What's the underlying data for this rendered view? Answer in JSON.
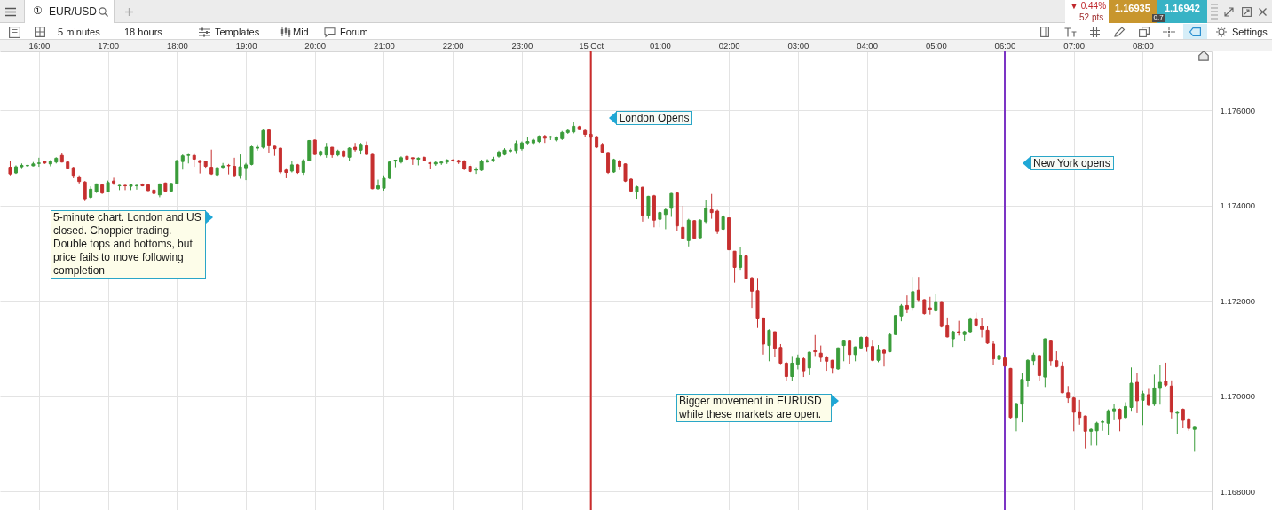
{
  "chart_data": {
    "type": "candlestick",
    "title": "EUR/USD",
    "x": [
      "--10-14T15:35",
      "--10-14T15:40",
      "--10-14T15:45",
      "--10-14T15:50",
      "--10-14T15:55",
      "--10-14T16:00",
      "--10-14T16:05",
      "--10-14T16:10",
      "--10-14T16:15",
      "--10-14T16:20",
      "--10-14T16:25",
      "--10-14T16:30",
      "--10-14T16:35",
      "--10-14T16:40",
      "--10-14T16:45",
      "--10-14T16:50",
      "--10-14T16:55",
      "--10-14T17:00",
      "--10-14T17:05",
      "--10-14T17:10",
      "--10-14T17:15",
      "--10-14T17:20",
      "--10-14T17:25",
      "--10-14T17:30",
      "--10-14T17:35",
      "--10-14T17:40",
      "--10-14T17:45",
      "--10-14T17:50",
      "--10-14T17:55",
      "--10-14T18:00",
      "--10-14T18:05",
      "--10-14T18:10",
      "--10-14T18:15",
      "--10-14T18:20",
      "--10-14T18:25",
      "--10-14T18:30",
      "--10-14T18:35",
      "--10-14T18:40",
      "--10-14T18:45",
      "--10-14T18:50",
      "--10-14T18:55",
      "--10-14T19:00",
      "--10-14T19:05",
      "--10-14T19:10",
      "--10-14T19:15",
      "--10-14T19:20",
      "--10-14T19:25",
      "--10-14T19:30",
      "--10-14T19:35",
      "--10-14T19:40",
      "--10-14T19:45",
      "--10-14T19:50",
      "--10-14T19:55",
      "--10-14T20:00",
      "--10-14T20:05",
      "--10-14T20:10",
      "--10-14T20:15",
      "--10-14T20:20",
      "--10-14T20:25",
      "--10-14T20:30",
      "--10-14T20:35",
      "--10-14T20:40",
      "--10-14T20:45",
      "--10-14T20:50",
      "--10-14T20:55",
      "--10-14T21:00",
      "--10-14T21:05",
      "--10-14T21:10",
      "--10-14T21:15",
      "--10-14T21:20",
      "--10-14T21:25",
      "--10-14T21:30",
      "--10-14T21:35",
      "--10-14T21:40",
      "--10-14T21:45",
      "--10-14T21:50",
      "--10-14T21:55",
      "--10-14T22:00",
      "--10-14T22:05",
      "--10-14T22:10",
      "--10-14T22:15",
      "--10-14T22:20",
      "--10-14T22:25",
      "--10-14T22:30",
      "--10-14T22:35",
      "--10-14T22:40",
      "--10-14T22:45",
      "--10-14T22:50",
      "--10-14T22:55",
      "--10-14T23:00",
      "--10-14T23:05",
      "--10-14T23:10",
      "--10-14T23:15",
      "--10-14T23:20",
      "--10-14T23:25",
      "--10-14T23:30",
      "--10-14T23:35",
      "--10-14T23:40",
      "--10-14T23:45",
      "--10-14T23:50",
      "--10-14T23:55",
      "--10-15T00:00",
      "--10-15T00:05",
      "--10-15T00:10",
      "--10-15T00:15",
      "--10-15T00:20",
      "--10-15T00:25",
      "--10-15T00:30",
      "--10-15T00:35",
      "--10-15T00:40",
      "--10-15T00:45",
      "--10-15T00:50",
      "--10-15T00:55",
      "--10-15T01:00",
      "--10-15T01:05",
      "--10-15T01:10",
      "--10-15T01:15",
      "--10-15T01:20",
      "--10-15T01:25",
      "--10-15T01:30",
      "--10-15T01:35",
      "--10-15T01:40",
      "--10-15T01:45",
      "--10-15T01:50",
      "--10-15T01:55",
      "--10-15T02:00",
      "--10-15T02:05",
      "--10-15T02:10",
      "--10-15T02:15",
      "--10-15T02:20",
      "--10-15T02:25",
      "--10-15T02:30",
      "--10-15T02:35",
      "--10-15T02:40",
      "--10-15T02:45",
      "--10-15T02:50",
      "--10-15T02:55",
      "--10-15T03:00",
      "--10-15T03:05",
      "--10-15T03:10",
      "--10-15T03:15",
      "--10-15T03:20",
      "--10-15T03:25",
      "--10-15T03:30",
      "--10-15T03:35",
      "--10-15T03:40",
      "--10-15T03:45",
      "--10-15T03:50",
      "--10-15T03:55",
      "--10-15T04:00",
      "--10-15T04:05",
      "--10-15T04:10",
      "--10-15T04:15",
      "--10-15T04:20",
      "--10-15T04:25",
      "--10-15T04:30",
      "--10-15T04:35",
      "--10-15T04:40",
      "--10-15T04:45",
      "--10-15T04:50",
      "--10-15T04:55",
      "--10-15T05:00",
      "--10-15T05:05",
      "--10-15T05:10",
      "--10-15T05:15",
      "--10-15T05:20",
      "--10-15T05:25",
      "--10-15T05:30",
      "--10-15T05:35",
      "--10-15T05:40",
      "--10-15T05:45",
      "--10-15T05:50",
      "--10-15T05:55",
      "--10-15T06:00",
      "--10-15T06:05",
      "--10-15T06:10",
      "--10-15T06:15",
      "--10-15T06:20",
      "--10-15T06:25",
      "--10-15T06:30",
      "--10-15T06:35",
      "--10-15T06:40",
      "--10-15T06:45",
      "--10-15T06:50",
      "--10-15T06:55",
      "--10-15T07:00",
      "--10-15T07:05",
      "--10-15T07:10",
      "--10-15T07:15",
      "--10-15T07:20",
      "--10-15T07:25",
      "--10-15T07:30",
      "--10-15T07:35",
      "--10-15T07:40",
      "--10-15T07:45",
      "--10-15T07:50",
      "--10-15T07:55",
      "--10-15T08:00",
      "--10-15T08:05",
      "--10-15T08:10",
      "--10-15T08:15",
      "--10-15T08:20",
      "--10-15T08:25",
      "--10-15T08:30",
      "--10-15T08:35",
      "--10-15T08:40",
      "--10-15T08:45"
    ],
    "ohlc": [
      [
        1.1748,
        1.17494,
        1.17463,
        1.17466
      ],
      [
        1.17468,
        1.17484,
        1.17466,
        1.17481
      ],
      [
        1.17481,
        1.17488,
        1.17478,
        1.17484
      ],
      [
        1.17483,
        1.17485,
        1.17482,
        1.17484
      ],
      [
        1.17483,
        1.17491,
        1.17482,
        1.17487
      ],
      [
        1.17488,
        1.175,
        1.17481,
        1.17489
      ],
      [
        1.17493,
        1.17494,
        1.17487,
        1.17489
      ],
      [
        1.17487,
        1.17495,
        1.17482,
        1.17492
      ],
      [
        1.17491,
        1.17501,
        1.17488,
        1.17499
      ],
      [
        1.17505,
        1.17509,
        1.1749,
        1.17491
      ],
      [
        1.17491,
        1.17492,
        1.17476,
        1.17478
      ],
      [
        1.17479,
        1.17481,
        1.17457,
        1.17463
      ],
      [
        1.1746,
        1.17463,
        1.17446,
        1.1745
      ],
      [
        1.17449,
        1.17451,
        1.17409,
        1.17414
      ],
      [
        1.17417,
        1.1744,
        1.17414,
        1.17434
      ],
      [
        1.17429,
        1.17446,
        1.17426,
        1.17445
      ],
      [
        1.17443,
        1.17445,
        1.17424,
        1.17426
      ],
      [
        1.17429,
        1.17452,
        1.17429,
        1.17448
      ],
      [
        1.17451,
        1.17458,
        1.17443,
        1.17447
      ],
      [
        1.17441,
        1.17443,
        1.17432,
        1.17442
      ],
      [
        1.17442,
        1.17443,
        1.17432,
        1.17441
      ],
      [
        1.1744,
        1.17445,
        1.17432,
        1.17443
      ],
      [
        1.17441,
        1.17443,
        1.17433,
        1.17442
      ],
      [
        1.17444,
        1.17446,
        1.1744,
        1.17441
      ],
      [
        1.17443,
        1.17445,
        1.1743,
        1.17431
      ],
      [
        1.17432,
        1.17434,
        1.17423,
        1.17425
      ],
      [
        1.17422,
        1.17446,
        1.17417,
        1.17445
      ],
      [
        1.17447,
        1.17448,
        1.17429,
        1.1743
      ],
      [
        1.1743,
        1.17447,
        1.17429,
        1.17446
      ],
      [
        1.17446,
        1.17495,
        1.17445,
        1.17494
      ],
      [
        1.17492,
        1.17507,
        1.17475,
        1.17504
      ],
      [
        1.17505,
        1.17508,
        1.17488,
        1.17506
      ],
      [
        1.17505,
        1.17508,
        1.17481,
        1.17497
      ],
      [
        1.17494,
        1.17495,
        1.17467,
        1.1749
      ],
      [
        1.17493,
        1.17494,
        1.17479,
        1.17482
      ],
      [
        1.1748,
        1.17517,
        1.17464,
        1.17466
      ],
      [
        1.17464,
        1.17481,
        1.17461,
        1.17479
      ],
      [
        1.1748,
        1.17489,
        1.17478,
        1.17483
      ],
      [
        1.17484,
        1.17487,
        1.17465,
        1.17483
      ],
      [
        1.17482,
        1.175,
        1.17459,
        1.17463
      ],
      [
        1.17463,
        1.17507,
        1.17456,
        1.17481
      ],
      [
        1.17479,
        1.17489,
        1.17453,
        1.17485
      ],
      [
        1.17486,
        1.17525,
        1.17484,
        1.17523
      ],
      [
        1.1752,
        1.17528,
        1.17515,
        1.17522
      ],
      [
        1.17522,
        1.17559,
        1.17519,
        1.17557
      ],
      [
        1.17558,
        1.1756,
        1.1751,
        1.17525
      ],
      [
        1.17524,
        1.17525,
        1.17504,
        1.17519
      ],
      [
        1.1752,
        1.17521,
        1.17466,
        1.1747
      ],
      [
        1.17474,
        1.17478,
        1.17457,
        1.17469
      ],
      [
        1.17472,
        1.17494,
        1.17469,
        1.17485
      ],
      [
        1.17485,
        1.17487,
        1.17466,
        1.17469
      ],
      [
        1.17469,
        1.17497,
        1.17464,
        1.17494
      ],
      [
        1.17494,
        1.17537,
        1.17493,
        1.17536
      ],
      [
        1.17537,
        1.17538,
        1.17506,
        1.17507
      ],
      [
        1.17506,
        1.17515,
        1.17503,
        1.17513
      ],
      [
        1.17506,
        1.17531,
        1.175,
        1.17522
      ],
      [
        1.17522,
        1.17522,
        1.175,
        1.17506
      ],
      [
        1.17506,
        1.17517,
        1.17503,
        1.17514
      ],
      [
        1.17514,
        1.17516,
        1.175,
        1.17503
      ],
      [
        1.17501,
        1.17522,
        1.17494,
        1.1752
      ],
      [
        1.17522,
        1.17531,
        1.17513,
        1.17517
      ],
      [
        1.17516,
        1.17531,
        1.17507,
        1.17528
      ],
      [
        1.17525,
        1.17534,
        1.17506,
        1.17507
      ],
      [
        1.17507,
        1.17508,
        1.17434,
        1.17435
      ],
      [
        1.17435,
        1.17454,
        1.17433,
        1.17441
      ],
      [
        1.17436,
        1.17463,
        1.17431,
        1.17457
      ],
      [
        1.17457,
        1.17493,
        1.17455,
        1.17491
      ],
      [
        1.17493,
        1.17496,
        1.1748,
        1.17495
      ],
      [
        1.17491,
        1.17503,
        1.17488,
        1.175
      ],
      [
        1.17503,
        1.17505,
        1.17494,
        1.17497
      ],
      [
        1.175,
        1.175,
        1.17485,
        1.17498
      ],
      [
        1.17497,
        1.17501,
        1.17484,
        1.17499
      ],
      [
        1.17501,
        1.17502,
        1.17493,
        1.17494
      ],
      [
        1.17489,
        1.17491,
        1.17477,
        1.17488
      ],
      [
        1.17487,
        1.17494,
        1.17483,
        1.1749
      ],
      [
        1.17489,
        1.17492,
        1.17485,
        1.17491
      ],
      [
        1.17491,
        1.17497,
        1.17487,
        1.17495
      ],
      [
        1.17495,
        1.17497,
        1.17492,
        1.17494
      ],
      [
        1.17494,
        1.17496,
        1.17487,
        1.17491
      ],
      [
        1.17493,
        1.17495,
        1.17474,
        1.17477
      ],
      [
        1.17482,
        1.17486,
        1.17468,
        1.17471
      ],
      [
        1.17474,
        1.1748,
        1.17466,
        1.17476
      ],
      [
        1.17474,
        1.17496,
        1.17472,
        1.17492
      ],
      [
        1.17491,
        1.17497,
        1.1749,
        1.17494
      ],
      [
        1.17493,
        1.17502,
        1.17491,
        1.17497
      ],
      [
        1.17503,
        1.17515,
        1.175,
        1.17512
      ],
      [
        1.17507,
        1.1752,
        1.17505,
        1.17516
      ],
      [
        1.17514,
        1.1752,
        1.1751,
        1.17516
      ],
      [
        1.17515,
        1.17536,
        1.17508,
        1.1753
      ],
      [
        1.17519,
        1.17534,
        1.17515,
        1.17531
      ],
      [
        1.17531,
        1.17543,
        1.17528,
        1.17534
      ],
      [
        1.17531,
        1.1754,
        1.17528,
        1.17537
      ],
      [
        1.17534,
        1.17547,
        1.17531,
        1.17545
      ],
      [
        1.17545,
        1.17548,
        1.17531,
        1.17541
      ],
      [
        1.17543,
        1.17546,
        1.17537,
        1.17544
      ],
      [
        1.17537,
        1.17545,
        1.17534,
        1.17543
      ],
      [
        1.1754,
        1.17556,
        1.17537,
        1.17553
      ],
      [
        1.17553,
        1.1756,
        1.1755,
        1.17557
      ],
      [
        1.17554,
        1.17575,
        1.17551,
        1.17566
      ],
      [
        1.17565,
        1.17567,
        1.17558,
        1.17559
      ],
      [
        1.17557,
        1.17559,
        1.17543,
        1.17549
      ],
      [
        1.17549,
        1.17551,
        1.1754,
        1.17543
      ],
      [
        1.17544,
        1.17546,
        1.1752,
        1.17522
      ],
      [
        1.17528,
        1.17531,
        1.1751,
        1.17512
      ],
      [
        1.17511,
        1.17512,
        1.17466,
        1.17469
      ],
      [
        1.1747,
        1.17498,
        1.17468,
        1.17496
      ],
      [
        1.17493,
        1.17496,
        1.17474,
        1.17482
      ],
      [
        1.17487,
        1.17488,
        1.17449,
        1.17451
      ],
      [
        1.17455,
        1.17457,
        1.17428,
        1.1743
      ],
      [
        1.17428,
        1.17441,
        1.17414,
        1.17439
      ],
      [
        1.17438,
        1.17439,
        1.17366,
        1.17379
      ],
      [
        1.17379,
        1.1742,
        1.17372,
        1.17419
      ],
      [
        1.1742,
        1.17422,
        1.17354,
        1.17369
      ],
      [
        1.17371,
        1.17388,
        1.17354,
        1.17385
      ],
      [
        1.17381,
        1.17394,
        1.1735,
        1.17391
      ],
      [
        1.17394,
        1.17426,
        1.17376,
        1.17425
      ],
      [
        1.17426,
        1.17426,
        1.17346,
        1.17357
      ],
      [
        1.17354,
        1.17399,
        1.17329,
        1.17331
      ],
      [
        1.17326,
        1.17372,
        1.17314,
        1.17369
      ],
      [
        1.17368,
        1.17369,
        1.17329,
        1.17331
      ],
      [
        1.17332,
        1.17371,
        1.17331,
        1.17369
      ],
      [
        1.17366,
        1.17412,
        1.17363,
        1.17394
      ],
      [
        1.17391,
        1.17424,
        1.17372,
        1.17385
      ],
      [
        1.17388,
        1.17391,
        1.1734,
        1.17345
      ],
      [
        1.1735,
        1.1738,
        1.17347,
        1.17376
      ],
      [
        1.17374,
        1.17375,
        1.17306,
        1.17307
      ],
      [
        1.17304,
        1.17304,
        1.17238,
        1.1727
      ],
      [
        1.1727,
        1.17312,
        1.17265,
        1.17295
      ],
      [
        1.17294,
        1.17296,
        1.17245,
        1.17247
      ],
      [
        1.17248,
        1.1725,
        1.17185,
        1.1722
      ],
      [
        1.17221,
        1.17248,
        1.17143,
        1.17162
      ],
      [
        1.17164,
        1.17165,
        1.17087,
        1.17109
      ],
      [
        1.17106,
        1.1714,
        1.17073,
        1.17138
      ],
      [
        1.17135,
        1.17135,
        1.17081,
        1.171
      ],
      [
        1.17102,
        1.17109,
        1.17067,
        1.17069
      ],
      [
        1.17069,
        1.17072,
        1.17031,
        1.17041
      ],
      [
        1.17041,
        1.17084,
        1.17031,
        1.17069
      ],
      [
        1.17067,
        1.17087,
        1.17056,
        1.17079
      ],
      [
        1.17078,
        1.17081,
        1.1704,
        1.17053
      ],
      [
        1.17059,
        1.17093,
        1.17044,
        1.17092
      ],
      [
        1.17095,
        1.17128,
        1.17084,
        1.17093
      ],
      [
        1.1709,
        1.17106,
        1.17072,
        1.17081
      ],
      [
        1.17082,
        1.17084,
        1.17053,
        1.17073
      ],
      [
        1.17075,
        1.17076,
        1.17047,
        1.17059
      ],
      [
        1.17057,
        1.17102,
        1.17055,
        1.17101
      ],
      [
        1.17106,
        1.17118,
        1.17073,
        1.17117
      ],
      [
        1.17117,
        1.17118,
        1.17068,
        1.17087
      ],
      [
        1.17087,
        1.17104,
        1.17073,
        1.17103
      ],
      [
        1.17101,
        1.17125,
        1.17099,
        1.17123
      ],
      [
        1.17123,
        1.17125,
        1.17093,
        1.17104
      ],
      [
        1.17104,
        1.17118,
        1.17073,
        1.17075
      ],
      [
        1.17075,
        1.17107,
        1.17071,
        1.17096
      ],
      [
        1.17096,
        1.17098,
        1.17062,
        1.1709
      ],
      [
        1.17093,
        1.17131,
        1.17092,
        1.17129
      ],
      [
        1.17129,
        1.1717,
        1.17128,
        1.17169
      ],
      [
        1.17168,
        1.17193,
        1.17157,
        1.17189
      ],
      [
        1.1719,
        1.17211,
        1.17174,
        1.17183
      ],
      [
        1.17186,
        1.1725,
        1.17179,
        1.17219
      ],
      [
        1.17222,
        1.1725,
        1.17199,
        1.17202
      ],
      [
        1.17202,
        1.17203,
        1.17171,
        1.17173
      ],
      [
        1.17185,
        1.17208,
        1.17171,
        1.17182
      ],
      [
        1.17179,
        1.17214,
        1.17177,
        1.17198
      ],
      [
        1.17198,
        1.17199,
        1.17144,
        1.17146
      ],
      [
        1.17149,
        1.17165,
        1.17123,
        1.17124
      ],
      [
        1.1712,
        1.17137,
        1.17103,
        1.17135
      ],
      [
        1.17135,
        1.17158,
        1.17127,
        1.17133
      ],
      [
        1.17129,
        1.17137,
        1.17115,
        1.17135
      ],
      [
        1.17135,
        1.17165,
        1.17133,
        1.17161
      ],
      [
        1.17161,
        1.17175,
        1.17144,
        1.17149
      ],
      [
        1.17146,
        1.17163,
        1.17123,
        1.1714
      ],
      [
        1.17138,
        1.17146,
        1.17109,
        1.17111
      ],
      [
        1.17109,
        1.17115,
        1.17065,
        1.17078
      ],
      [
        1.17077,
        1.17097,
        1.17074,
        1.17085
      ],
      [
        1.1708,
        1.17082,
        1.17062,
        1.17063
      ],
      [
        1.17058,
        1.17059,
        1.16953,
        1.16955
      ],
      [
        1.16955,
        1.16986,
        1.16926,
        1.16984
      ],
      [
        1.16983,
        1.17049,
        1.16945,
        1.17035
      ],
      [
        1.17032,
        1.17077,
        1.1702,
        1.17075
      ],
      [
        1.17074,
        1.17091,
        1.17064,
        1.17086
      ],
      [
        1.17085,
        1.17086,
        1.17032,
        1.17043
      ],
      [
        1.1704,
        1.17121,
        1.17019,
        1.1712
      ],
      [
        1.17117,
        1.17118,
        1.17063,
        1.17074
      ],
      [
        1.17074,
        1.17094,
        1.1706,
        1.17062
      ],
      [
        1.17062,
        1.17072,
        1.17006,
        1.17007
      ],
      [
        1.17007,
        1.17021,
        1.16986,
        1.16996
      ],
      [
        1.16996,
        1.16998,
        1.16926,
        1.16966
      ],
      [
        1.16967,
        1.16992,
        1.1694,
        1.16955
      ],
      [
        1.16958,
        1.16959,
        1.1689,
        1.16926
      ],
      [
        1.16926,
        1.16932,
        1.16896,
        1.1693
      ],
      [
        1.16927,
        1.16946,
        1.16896,
        1.16943
      ],
      [
        1.16945,
        1.16949,
        1.16927,
        1.16946
      ],
      [
        1.16943,
        1.16972,
        1.16918,
        1.16969
      ],
      [
        1.16969,
        1.16983,
        1.16951,
        1.16973
      ],
      [
        1.16972,
        1.16974,
        1.16926,
        1.16953
      ],
      [
        1.16955,
        1.16987,
        1.16953,
        1.16978
      ],
      [
        1.16976,
        1.1706,
        1.16969,
        1.17027
      ],
      [
        1.17029,
        1.17049,
        1.16964,
        1.1699
      ],
      [
        1.16991,
        1.17011,
        1.16939,
        1.17005
      ],
      [
        1.17003,
        1.17015,
        1.16979,
        1.16981
      ],
      [
        1.16983,
        1.17045,
        1.16979,
        1.17017
      ],
      [
        1.17016,
        1.17066,
        1.16982,
        1.17029
      ],
      [
        1.17031,
        1.1707,
        1.1702,
        1.17023
      ],
      [
        1.17021,
        1.17033,
        1.16953,
        1.16966
      ],
      [
        1.16964,
        1.16969,
        1.16921,
        1.16967
      ],
      [
        1.16972,
        1.16974,
        1.16933,
        1.16949
      ],
      [
        1.16952,
        1.16954,
        1.16927,
        1.16932
      ],
      [
        1.1693,
        1.16937,
        1.16883,
        1.16936
      ]
    ],
    "colors": [
      "#c62f2f",
      "#3a9c3a",
      "#3a9c3a",
      "#3a9c3a",
      "#3a9c3a",
      "#3a9c3a",
      "#c62f2f",
      "#3a9c3a",
      "#3a9c3a",
      "#c62f2f",
      "#c62f2f",
      "#c62f2f",
      "#c62f2f",
      "#c62f2f",
      "#3a9c3a",
      "#3a9c3a",
      "#c62f2f",
      "#3a9c3a",
      "#c62f2f",
      "#3a9c3a",
      "#c62f2f",
      "#3a9c3a",
      "#3a9c3a",
      "#c62f2f",
      "#c62f2f",
      "#c62f2f",
      "#3a9c3a",
      "#c62f2f",
      "#3a9c3a",
      "#3a9c3a",
      "#3a9c3a",
      "#3a9c3a",
      "#c62f2f",
      "#c62f2f",
      "#c62f2f",
      "#c62f2f",
      "#3a9c3a",
      "#3a9c3a",
      "#c62f2f",
      "#c62f2f",
      "#3a9c3a",
      "#3a9c3a",
      "#3a9c3a",
      "#3a9c3a",
      "#3a9c3a",
      "#c62f2f",
      "#c62f2f",
      "#c62f2f",
      "#c62f2f",
      "#3a9c3a",
      "#c62f2f",
      "#3a9c3a",
      "#3a9c3a",
      "#c62f2f",
      "#3a9c3a",
      "#3a9c3a",
      "#c62f2f",
      "#3a9c3a",
      "#c62f2f",
      "#3a9c3a",
      "#c62f2f",
      "#3a9c3a",
      "#c62f2f",
      "#c62f2f",
      "#3a9c3a",
      "#3a9c3a",
      "#3a9c3a",
      "#3a9c3a",
      "#3a9c3a",
      "#c62f2f",
      "#c62f2f",
      "#3a9c3a",
      "#c62f2f",
      "#c62f2f",
      "#3a9c3a",
      "#3a9c3a",
      "#3a9c3a",
      "#c62f2f",
      "#c62f2f",
      "#c62f2f",
      "#c62f2f",
      "#3a9c3a",
      "#3a9c3a",
      "#3a9c3a",
      "#3a9c3a",
      "#3a9c3a",
      "#3a9c3a",
      "#3a9c3a",
      "#3a9c3a",
      "#3a9c3a",
      "#3a9c3a",
      "#3a9c3a",
      "#3a9c3a",
      "#c62f2f",
      "#3a9c3a",
      "#3a9c3a",
      "#3a9c3a",
      "#3a9c3a",
      "#3a9c3a",
      "#c62f2f",
      "#c62f2f",
      "#c62f2f",
      "#c62f2f",
      "#c62f2f",
      "#c62f2f",
      "#3a9c3a",
      "#c62f2f",
      "#c62f2f",
      "#c62f2f",
      "#3a9c3a",
      "#c62f2f",
      "#3a9c3a",
      "#c62f2f",
      "#3a9c3a",
      "#3a9c3a",
      "#3a9c3a",
      "#c62f2f",
      "#c62f2f",
      "#3a9c3a",
      "#c62f2f",
      "#3a9c3a",
      "#3a9c3a",
      "#c62f2f",
      "#c62f2f",
      "#3a9c3a",
      "#c62f2f",
      "#c62f2f",
      "#3a9c3a",
      "#c62f2f",
      "#c62f2f",
      "#c62f2f",
      "#c62f2f",
      "#3a9c3a",
      "#c62f2f",
      "#c62f2f",
      "#c62f2f",
      "#3a9c3a",
      "#3a9c3a",
      "#c62f2f",
      "#3a9c3a",
      "#c62f2f",
      "#c62f2f",
      "#c62f2f",
      "#c62f2f",
      "#3a9c3a",
      "#3a9c3a",
      "#c62f2f",
      "#3a9c3a",
      "#3a9c3a",
      "#c62f2f",
      "#c62f2f",
      "#3a9c3a",
      "#c62f2f",
      "#3a9c3a",
      "#3a9c3a",
      "#3a9c3a",
      "#c62f2f",
      "#3a9c3a",
      "#c62f2f",
      "#c62f2f",
      "#c62f2f",
      "#3a9c3a",
      "#c62f2f",
      "#c62f2f",
      "#3a9c3a",
      "#c62f2f",
      "#3a9c3a",
      "#3a9c3a",
      "#c62f2f",
      "#c62f2f",
      "#c62f2f",
      "#c62f2f",
      "#3a9c3a",
      "#c62f2f",
      "#c62f2f",
      "#3a9c3a",
      "#3a9c3a",
      "#3a9c3a",
      "#3a9c3a",
      "#c62f2f",
      "#3a9c3a",
      "#c62f2f",
      "#c62f2f",
      "#c62f2f",
      "#c62f2f",
      "#c62f2f",
      "#c62f2f",
      "#c62f2f",
      "#3a9c3a",
      "#3a9c3a",
      "#3a9c3a",
      "#3a9c3a",
      "#3a9c3a",
      "#c62f2f",
      "#3a9c3a",
      "#3a9c3a",
      "#c62f2f",
      "#3a9c3a",
      "#c62f2f",
      "#3a9c3a",
      "#3a9c3a",
      "#c62f2f",
      "#c62f2f",
      "#3a9c3a",
      "#c62f2f",
      "#c62f2f",
      "#3a9c3a"
    ],
    "xlim": [
      "--10-14T15:30",
      "--10-15T08:56"
    ],
    "xticks": [
      {
        "value": "--10-14T16:00",
        "label": "16:00"
      },
      {
        "value": "--10-14T17:00",
        "label": "17:00"
      },
      {
        "value": "--10-14T18:00",
        "label": "18:00"
      },
      {
        "value": "--10-14T19:00",
        "label": "19:00"
      },
      {
        "value": "--10-14T20:00",
        "label": "20:00"
      },
      {
        "value": "--10-14T21:00",
        "label": "21:00"
      },
      {
        "value": "--10-14T22:00",
        "label": "22:00"
      },
      {
        "value": "--10-14T23:00",
        "label": "23:00"
      },
      {
        "value": "--10-15T00:00",
        "label": "15 Oct"
      },
      {
        "value": "--10-15T01:00",
        "label": "01:00"
      },
      {
        "value": "--10-15T02:00",
        "label": "02:00"
      },
      {
        "value": "--10-15T03:00",
        "label": "03:00"
      },
      {
        "value": "--10-15T04:00",
        "label": "04:00"
      },
      {
        "value": "--10-15T05:00",
        "label": "05:00"
      },
      {
        "value": "--10-15T06:00",
        "label": "06:00"
      },
      {
        "value": "--10-15T07:00",
        "label": "07:00"
      },
      {
        "value": "--10-15T08:00",
        "label": "08:00"
      }
    ],
    "ylim": [
      1.16761,
      1.17723
    ],
    "yticks": [
      {
        "value": 1.168,
        "label": "1.168000"
      },
      {
        "value": 1.17,
        "label": "1.170000"
      },
      {
        "value": 1.172,
        "label": "1.172000"
      },
      {
        "value": 1.174,
        "label": "1.174000"
      },
      {
        "value": 1.176,
        "label": "1.176000"
      }
    ],
    "grid": true,
    "ref_lines": [
      {
        "axis": "x",
        "value": "--10-15T00:00",
        "label": "London Opens",
        "color": "#cc2b2b"
      },
      {
        "axis": "x",
        "value": "--10-15T06:00",
        "label": "New York opens",
        "color": "#7b34c4"
      }
    ],
    "annotations": [
      "5-minute chart. London and US closed. Choppier trading. Double tops and bottoms, but price fails to move following completion",
      "Bigger movement in EURUSD while these markets are open.",
      "①",
      "5 minutes",
      "18 hours",
      "Templates",
      "Mid",
      "Forum",
      "Settings",
      "▼ 0.44%",
      "52 pts",
      "1.16935",
      "0.7",
      "1.16942"
    ]
  }
}
